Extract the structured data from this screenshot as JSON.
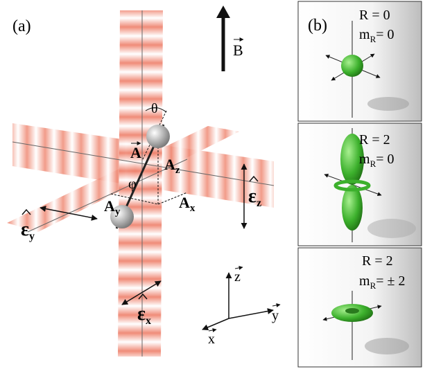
{
  "panel_a": {
    "label": "(a)",
    "field": "B",
    "theta": "θ",
    "phi": "φ",
    "vector": "A",
    "components": [
      {
        "base": "A",
        "sub": "z"
      },
      {
        "base": "A",
        "sub": "y"
      },
      {
        "base": "A",
        "sub": "x"
      }
    ],
    "polarizations": [
      {
        "base": "ε",
        "sub": "z"
      },
      {
        "base": "ε",
        "sub": "y"
      },
      {
        "base": "ε",
        "sub": "x"
      }
    ],
    "axes": [
      "z",
      "y",
      "x"
    ]
  },
  "panel_b": {
    "label": "(b)",
    "states": [
      {
        "R": "R  = 0",
        "m": {
          "base": "m",
          "sub": "R",
          "rest": "= 0"
        }
      },
      {
        "R": "R  = 2",
        "m": {
          "base": "m",
          "sub": "R",
          "rest": "= 0"
        }
      },
      {
        "R": "R  = 2",
        "m": {
          "base": "m",
          "sub": "R",
          "rest": "= ± 2"
        }
      }
    ]
  }
}
